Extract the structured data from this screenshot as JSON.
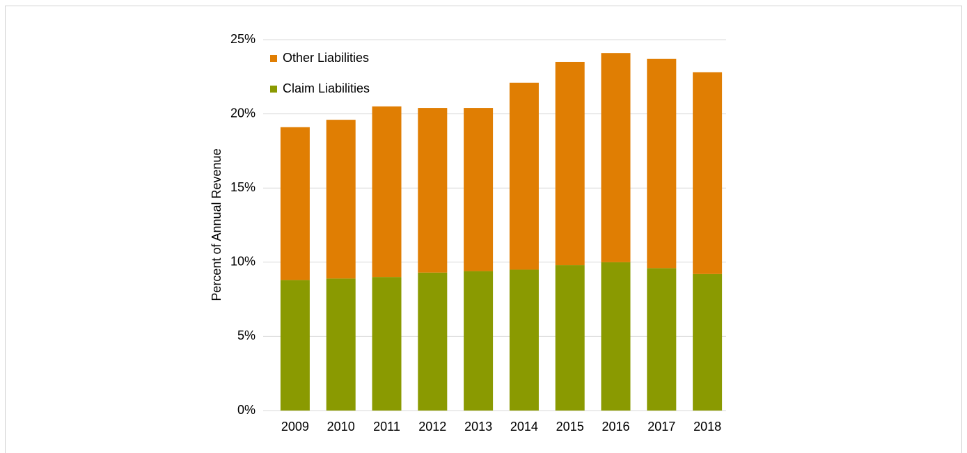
{
  "chart_data": {
    "type": "stacked_bar",
    "categories": [
      "2009",
      "2010",
      "2011",
      "2012",
      "2013",
      "2014",
      "2015",
      "2016",
      "2017",
      "2018"
    ],
    "series": [
      {
        "name": "Claim Liabilities",
        "color": "#8a9a01",
        "values": [
          8.8,
          8.9,
          9.0,
          9.3,
          9.4,
          9.5,
          9.8,
          10.0,
          9.6,
          9.2
        ]
      },
      {
        "name": "Other Liabilities",
        "color": "#e07e03",
        "values": [
          10.3,
          10.7,
          11.5,
          11.1,
          11.0,
          12.6,
          13.7,
          14.1,
          14.1,
          13.6
        ]
      }
    ],
    "y_label": "Percent of Annual Revenue",
    "ylim": [
      0,
      25
    ],
    "yticks": [
      {
        "value": 0,
        "label": "0%"
      },
      {
        "value": 5,
        "label": "5%"
      },
      {
        "value": 10,
        "label": "10%"
      },
      {
        "value": 15,
        "label": "15%"
      },
      {
        "value": 20,
        "label": "20%"
      },
      {
        "value": 25,
        "label": "25%"
      }
    ],
    "grid": true
  }
}
